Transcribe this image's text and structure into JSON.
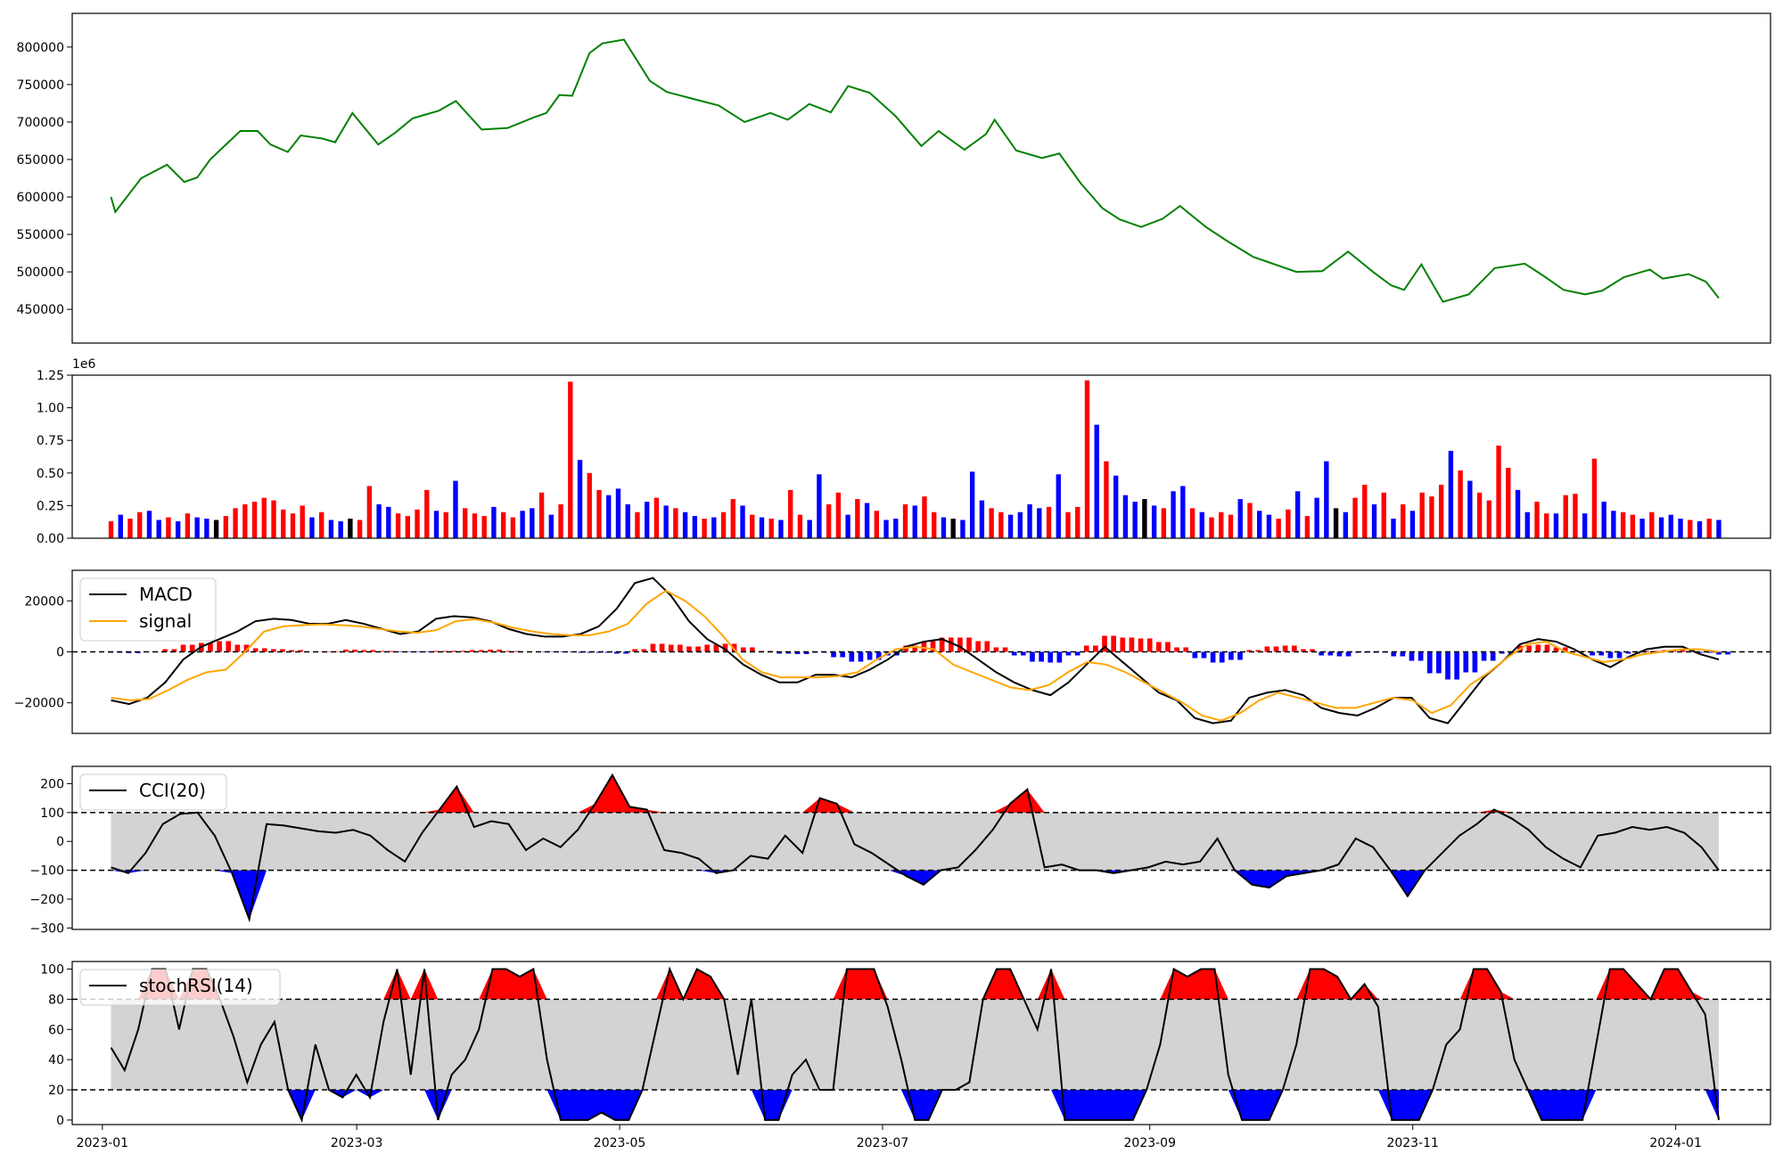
{
  "chart_data": [
    {
      "type": "line",
      "name": "price",
      "ylim": [
        405000,
        845000
      ],
      "ytick_values": [
        450000,
        500000,
        550000,
        600000,
        650000,
        700000,
        750000,
        800000
      ],
      "ytick_labels": [
        "450000",
        "500000",
        "550000",
        "600000",
        "650000",
        "700000",
        "750000",
        "800000"
      ],
      "line_color": "#008000",
      "series": [
        {
          "x": [
            "2023-01-03",
            "2023-01-04",
            "2023-01-10",
            "2023-01-16",
            "2023-01-20",
            "2023-01-23",
            "2023-01-26",
            "2023-02-02",
            "2023-02-06",
            "2023-02-09",
            "2023-02-13",
            "2023-02-16",
            "2023-02-21",
            "2023-02-24",
            "2023-02-28",
            "2023-03-06",
            "2023-03-10",
            "2023-03-14",
            "2023-03-20",
            "2023-03-24",
            "2023-03-30",
            "2023-04-05",
            "2023-04-11",
            "2023-04-14",
            "2023-04-17",
            "2023-04-20",
            "2023-04-24",
            "2023-04-27",
            "2023-05-02",
            "2023-05-08",
            "2023-05-12",
            "2023-05-18",
            "2023-05-24",
            "2023-05-30",
            "2023-06-05",
            "2023-06-09",
            "2023-06-14",
            "2023-06-19",
            "2023-06-23",
            "2023-06-28",
            "2023-07-04",
            "2023-07-10",
            "2023-07-14",
            "2023-07-20",
            "2023-07-25",
            "2023-07-27",
            "2023-08-01",
            "2023-08-07",
            "2023-08-11",
            "2023-08-16",
            "2023-08-21",
            "2023-08-25",
            "2023-08-30",
            "2023-09-04",
            "2023-09-08",
            "2023-09-14",
            "2023-09-19",
            "2023-09-25",
            "2023-10-05",
            "2023-10-11",
            "2023-10-17",
            "2023-10-23",
            "2023-10-27",
            "2023-10-30",
            "2023-11-03",
            "2023-11-08",
            "2023-11-14",
            "2023-11-20",
            "2023-11-27",
            "2023-12-01",
            "2023-12-06",
            "2023-12-11",
            "2023-12-15",
            "2023-12-20",
            "2023-12-26",
            "2023-12-29",
            "2024-01-04",
            "2024-01-08",
            "2024-01-11"
          ],
          "y": [
            600000,
            580000,
            625000,
            643000,
            620000,
            626000,
            650000,
            688000,
            688000,
            670000,
            660000,
            682000,
            678000,
            673000,
            712000,
            670000,
            686000,
            705000,
            715000,
            728000,
            690000,
            692000,
            706000,
            712000,
            736000,
            735000,
            792000,
            805000,
            810000,
            755000,
            740000,
            731000,
            722000,
            700000,
            712000,
            703000,
            724000,
            713000,
            748000,
            739000,
            708000,
            668000,
            688000,
            663000,
            684000,
            703000,
            662000,
            652000,
            658000,
            618000,
            585000,
            570000,
            560000,
            571000,
            588000,
            560000,
            541000,
            520000,
            500000,
            501000,
            527000,
            499000,
            482000,
            476000,
            510000,
            460000,
            470000,
            505000,
            511000,
            496000,
            476000,
            470000,
            475000,
            493000,
            503000,
            491000,
            497000,
            487000,
            465000
          ]
        }
      ]
    },
    {
      "type": "bar",
      "name": "volume",
      "ylim": [
        0,
        1250000
      ],
      "ytick_values": [
        0,
        250000,
        500000,
        750000,
        1000000,
        1250000
      ],
      "ytick_labels": [
        "0.00",
        "0.25",
        "0.50",
        "0.75",
        "1.00",
        "1.25"
      ],
      "offset_label": "1e6",
      "colors": {
        "up": "#ff0000",
        "down": "#0000ff",
        "flat": "#000000"
      },
      "sample_values": [
        130000,
        180000,
        150000,
        200000,
        210000,
        140000,
        160000,
        130000,
        190000,
        160000,
        150000,
        140000,
        170000,
        230000,
        260000,
        280000,
        310000,
        290000,
        220000,
        190000,
        250000,
        160000,
        200000,
        140000,
        130000,
        150000,
        140000,
        400000,
        260000,
        240000,
        190000,
        170000,
        220000,
        370000,
        210000,
        200000,
        440000,
        230000,
        190000,
        170000,
        240000,
        200000,
        160000,
        210000,
        230000,
        350000,
        180000,
        260000,
        1200000,
        600000,
        500000,
        370000,
        330000,
        380000,
        260000,
        200000,
        280000,
        310000,
        250000,
        230000,
        200000,
        170000,
        150000,
        160000,
        200000,
        300000,
        250000,
        180000,
        160000,
        150000,
        140000,
        370000,
        180000,
        140000,
        490000,
        260000,
        350000,
        180000,
        300000,
        270000,
        210000,
        140000,
        150000,
        260000,
        250000,
        320000,
        200000,
        160000,
        150000,
        140000,
        510000,
        290000,
        230000,
        200000,
        180000,
        200000,
        260000,
        230000,
        240000,
        490000,
        200000,
        240000,
        1210000,
        870000,
        590000,
        480000,
        330000,
        280000,
        300000,
        250000,
        230000,
        360000,
        400000,
        230000,
        200000,
        160000,
        200000,
        180000,
        300000,
        270000,
        210000,
        180000,
        150000,
        220000,
        360000,
        170000,
        310000,
        590000,
        230000,
        200000,
        310000,
        410000,
        260000,
        350000,
        150000,
        260000,
        210000,
        350000,
        320000,
        410000,
        670000,
        520000,
        440000,
        350000,
        290000,
        710000,
        540000,
        370000,
        200000,
        280000,
        190000,
        190000,
        330000,
        340000,
        190000,
        610000,
        280000,
        210000,
        200000,
        180000,
        150000,
        200000,
        160000,
        180000,
        150000,
        140000,
        130000,
        150000,
        140000
      ],
      "sample_directions": [
        "up",
        "down",
        "up",
        "up",
        "down",
        "down",
        "up",
        "down",
        "up",
        "down",
        "down",
        "black",
        "up",
        "up",
        "up",
        "up",
        "up",
        "up",
        "up",
        "up",
        "up",
        "down",
        "up",
        "down",
        "down",
        "black",
        "up",
        "up",
        "down",
        "down",
        "up",
        "up",
        "up",
        "up",
        "down",
        "up",
        "down",
        "up",
        "up",
        "up",
        "down",
        "up",
        "up",
        "down",
        "down",
        "up",
        "down",
        "up",
        "up",
        "down",
        "up",
        "up",
        "down",
        "down",
        "down",
        "up",
        "down",
        "up",
        "down",
        "up",
        "down",
        "down",
        "up",
        "down",
        "up",
        "up",
        "down",
        "up",
        "down",
        "up",
        "down",
        "up",
        "up",
        "down",
        "down",
        "up",
        "up",
        "down",
        "up",
        "down",
        "up",
        "down",
        "down",
        "up",
        "down",
        "up",
        "up",
        "down",
        "black",
        "down",
        "down",
        "down",
        "up",
        "up",
        "down",
        "down",
        "down",
        "down",
        "up",
        "down",
        "up",
        "up",
        "up",
        "down",
        "up",
        "down",
        "down",
        "down",
        "black",
        "down",
        "up",
        "down",
        "down",
        "up",
        "down",
        "up",
        "up",
        "up",
        "down",
        "up",
        "down",
        "down",
        "up",
        "up",
        "down",
        "up",
        "down",
        "down",
        "black",
        "down",
        "up",
        "up",
        "down",
        "up",
        "down",
        "up",
        "down",
        "up",
        "up",
        "up",
        "down",
        "up",
        "down",
        "up",
        "up",
        "up",
        "up",
        "down",
        "down",
        "up",
        "up",
        "down",
        "up",
        "up",
        "down",
        "up",
        "down",
        "down",
        "up",
        "up",
        "down",
        "up",
        "down",
        "down",
        "down",
        "up",
        "down",
        "up",
        "down",
        "down",
        "down",
        "down"
      ]
    },
    {
      "type": "line",
      "name": "MACD",
      "ylim": [
        -32000,
        32000
      ],
      "ytick_values": [
        -20000,
        0,
        20000
      ],
      "ytick_labels": [
        "−20000",
        "0",
        "20000"
      ],
      "legend": [
        "MACD",
        "signal"
      ],
      "reference_lines": [
        0
      ],
      "series": [
        {
          "name": "MACD",
          "color": "#000000",
          "y": [
            -19000,
            -20500,
            -18000,
            -12000,
            -3000,
            2000,
            5000,
            8000,
            12000,
            13000,
            12500,
            11000,
            11000,
            12500,
            11000,
            9000,
            7000,
            8000,
            13000,
            14000,
            13500,
            12000,
            9000,
            7000,
            6000,
            6000,
            7000,
            10000,
            17000,
            27000,
            29000,
            22000,
            12000,
            5000,
            1000,
            -5000,
            -9000,
            -12000,
            -12000,
            -9000,
            -9000,
            -10000,
            -7000,
            -3000,
            2000,
            4000,
            5000,
            2000,
            -3000,
            -8000,
            -12000,
            -15000,
            -17000,
            -12000,
            -5000,
            2000,
            -4000,
            -10000,
            -16000,
            -19000,
            -26000,
            -28000,
            -27000,
            -18000,
            -16000,
            -15000,
            -17000,
            -22000,
            -24000,
            -25000,
            -22000,
            -18000,
            -18000,
            -26000,
            -28000,
            -19000,
            -10000,
            -4000,
            3000,
            5000,
            4000,
            1000,
            -3000,
            -6000,
            -2000,
            1000,
            2000,
            2000,
            -1000,
            -3000
          ]
        },
        {
          "name": "signal",
          "color": "#ffa500",
          "y": [
            -18000,
            -19000,
            -18500,
            -15000,
            -11000,
            -8000,
            -7000,
            0,
            8000,
            10000,
            10500,
            10800,
            10500,
            10000,
            9000,
            8000,
            7500,
            8500,
            12000,
            12800,
            11500,
            9500,
            8000,
            7000,
            6500,
            6500,
            8000,
            11000,
            19000,
            24000,
            20000,
            14000,
            6000,
            -3000,
            -8000,
            -10000,
            -10000,
            -10000,
            -9500,
            -8000,
            -3000,
            1000,
            2000,
            1000,
            -5000,
            -8000,
            -11000,
            -14000,
            -15000,
            -13000,
            -8000,
            -4000,
            -5000,
            -8000,
            -12000,
            -16000,
            -20000,
            -25000,
            -27000,
            -24000,
            -19000,
            -16000,
            -18000,
            -20000,
            -22000,
            -22000,
            -20000,
            -18000,
            -19000,
            -24000,
            -21000,
            -13000,
            -8000,
            -2000,
            3000,
            4000,
            0,
            -2000,
            -4000,
            -3000,
            -1000,
            0,
            1000,
            1000,
            0
          ]
        }
      ]
    },
    {
      "type": "area",
      "name": "CCI",
      "ylim": [
        -305,
        260
      ],
      "ytick_values": [
        -300,
        -200,
        -100,
        0,
        100,
        200
      ],
      "ytick_labels": [
        "−300",
        "−200",
        "−100",
        "0",
        "100",
        "200"
      ],
      "legend": [
        "CCI(20)"
      ],
      "reference_lines": [
        100,
        -100
      ],
      "band": [
        -100,
        100
      ],
      "colors": {
        "line": "#000000",
        "over": "#ff0000",
        "under": "#0000ff",
        "band": "#d3d3d3"
      },
      "series": [
        {
          "name": "CCI(20)",
          "y": [
            -90,
            -110,
            -40,
            60,
            95,
            100,
            20,
            -110,
            -270,
            60,
            55,
            45,
            35,
            30,
            40,
            20,
            -30,
            -70,
            30,
            110,
            190,
            50,
            70,
            60,
            -30,
            10,
            -20,
            40,
            130,
            230,
            120,
            110,
            -30,
            -40,
            -60,
            -110,
            -100,
            -50,
            -60,
            20,
            -40,
            150,
            130,
            -10,
            -40,
            -80,
            -120,
            -150,
            -100,
            -90,
            -30,
            40,
            130,
            180,
            -90,
            -80,
            -100,
            -100,
            -110,
            -100,
            -90,
            -70,
            -80,
            -70,
            10,
            -100,
            -150,
            -160,
            -120,
            -110,
            -100,
            -80,
            10,
            -20,
            -100,
            -190,
            -100,
            -40,
            20,
            60,
            110,
            80,
            40,
            -20,
            -60,
            -90,
            20,
            30,
            50,
            40,
            50,
            30,
            -20,
            -100
          ]
        }
      ]
    },
    {
      "type": "area",
      "name": "stochRSI",
      "ylim": [
        -3,
        105
      ],
      "ytick_values": [
        0,
        20,
        40,
        60,
        80,
        100
      ],
      "ytick_labels": [
        "0",
        "20",
        "40",
        "60",
        "80",
        "100"
      ],
      "legend": [
        "stochRSI(14)"
      ],
      "reference_lines": [
        80,
        20
      ],
      "band": [
        20,
        80
      ],
      "colors": {
        "line": "#000000",
        "over": "#ff0000",
        "under": "#0000ff",
        "band": "#d3d3d3"
      },
      "series": [
        {
          "name": "stochRSI(14)",
          "y": [
            48,
            33,
            60,
            100,
            100,
            60,
            100,
            100,
            80,
            55,
            25,
            50,
            65,
            20,
            0,
            50,
            20,
            15,
            30,
            15,
            65,
            100,
            30,
            100,
            0,
            30,
            40,
            60,
            100,
            100,
            95,
            100,
            40,
            0,
            0,
            0,
            5,
            0,
            0,
            20,
            60,
            100,
            80,
            100,
            95,
            80,
            30,
            80,
            0,
            0,
            30,
            40,
            20,
            20,
            100,
            100,
            100,
            75,
            40,
            0,
            0,
            20,
            20,
            25,
            80,
            100,
            100,
            80,
            60,
            100,
            0,
            0,
            0,
            0,
            0,
            0,
            20,
            50,
            100,
            95,
            100,
            100,
            30,
            0,
            0,
            0,
            20,
            50,
            100,
            100,
            95,
            80,
            90,
            75,
            0,
            0,
            0,
            20,
            50,
            60,
            100,
            100,
            85,
            40,
            20,
            0,
            0,
            0,
            0,
            50,
            100,
            100,
            90,
            80,
            100,
            100,
            85,
            70,
            0
          ]
        }
      ]
    }
  ],
  "x_axis": {
    "range": [
      "2022-12-25",
      "2024-01-23"
    ],
    "tick_values": [
      "2023-01-01",
      "2023-03-01",
      "2023-05-01",
      "2023-07-01",
      "2023-09-01",
      "2023-11-01",
      "2024-01-01"
    ],
    "tick_labels": [
      "2023-01",
      "2023-03",
      "2023-05",
      "2023-07",
      "2023-09",
      "2023-11",
      "2024-01"
    ],
    "data_range": [
      "2023-01-03",
      "2024-01-11"
    ]
  }
}
